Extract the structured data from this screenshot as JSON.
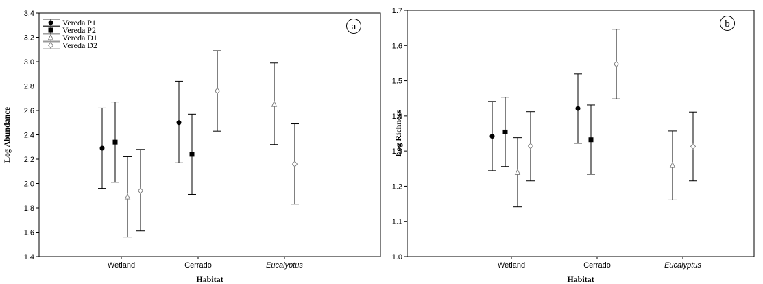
{
  "chart_data": [
    {
      "panel_label": "a",
      "type": "scatter",
      "title": "",
      "xlabel": "Habitat",
      "ylabel": "Log Abundance",
      "ylim": [
        1.4,
        3.4
      ],
      "yticks": [
        1.4,
        1.6,
        1.8,
        2.0,
        2.2,
        2.4,
        2.6,
        2.8,
        3.0,
        3.2,
        3.4
      ],
      "ytick_labels": [
        "1.4",
        "1.6",
        "1.8",
        "2.0",
        "2.2",
        "2.4",
        "2.6",
        "2.8",
        "3.0",
        "3.2",
        "3.4"
      ],
      "categories": [
        "Wetland",
        "Cerrado",
        "Eucalyptus"
      ],
      "categories_italic": [
        false,
        false,
        true
      ],
      "legend": {
        "position": "top-left",
        "entries": [
          "Vereda P1",
          "Vereda P2",
          "Vereda D1",
          "Vereda D2"
        ]
      },
      "series": [
        {
          "name": "Vereda P1",
          "marker": "circle-filled",
          "points": [
            {
              "category": "Wetland",
              "mean": 2.29,
              "low": 1.96,
              "high": 2.62
            },
            {
              "category": "Cerrado",
              "mean": 2.5,
              "low": 2.17,
              "high": 2.84
            }
          ]
        },
        {
          "name": "Vereda P2",
          "marker": "square-filled",
          "points": [
            {
              "category": "Wetland",
              "mean": 2.34,
              "low": 2.01,
              "high": 2.67
            },
            {
              "category": "Cerrado",
              "mean": 2.24,
              "low": 1.91,
              "high": 2.57
            }
          ]
        },
        {
          "name": "Vereda D1",
          "marker": "triangle-open",
          "points": [
            {
              "category": "Wetland",
              "mean": 1.89,
              "low": 1.56,
              "high": 2.22
            },
            {
              "category": "Eucalyptus",
              "mean": 2.65,
              "low": 2.32,
              "high": 2.99
            }
          ]
        },
        {
          "name": "Vereda D2",
          "marker": "diamond-open",
          "points": [
            {
              "category": "Wetland",
              "mean": 1.94,
              "low": 1.61,
              "high": 2.28
            },
            {
              "category": "Cerrado",
              "mean": 2.76,
              "low": 2.43,
              "high": 3.09
            },
            {
              "category": "Eucalyptus",
              "mean": 2.16,
              "low": 1.83,
              "high": 2.49
            }
          ]
        }
      ]
    },
    {
      "panel_label": "b",
      "type": "scatter",
      "title": "",
      "xlabel": "Habitat",
      "ylabel": "Log Richness",
      "ylim": [
        1.0,
        1.7
      ],
      "yticks": [
        1.0,
        1.1,
        1.2,
        1.3,
        1.4,
        1.5,
        1.6,
        1.7
      ],
      "ytick_labels": [
        "1.0",
        "1.1",
        "1.2",
        "1.3",
        "1.4",
        "1.5",
        "1.6",
        "1.7"
      ],
      "categories": [
        "Wetland",
        "Cerrado",
        "Eucalyptus"
      ],
      "categories_italic": [
        false,
        false,
        true
      ],
      "series": [
        {
          "name": "Vereda P1",
          "marker": "circle-filled",
          "points": [
            {
              "category": "Wetland",
              "mean": 1.342,
              "low": 1.244,
              "high": 1.441
            },
            {
              "category": "Cerrado",
              "mean": 1.421,
              "low": 1.322,
              "high": 1.519
            }
          ]
        },
        {
          "name": "Vereda P2",
          "marker": "square-filled",
          "points": [
            {
              "category": "Wetland",
              "mean": 1.354,
              "low": 1.256,
              "high": 1.453
            },
            {
              "category": "Cerrado",
              "mean": 1.332,
              "low": 1.234,
              "high": 1.431
            }
          ]
        },
        {
          "name": "Vereda D1",
          "marker": "triangle-open",
          "points": [
            {
              "category": "Wetland",
              "mean": 1.239,
              "low": 1.141,
              "high": 1.338
            },
            {
              "category": "Eucalyptus",
              "mean": 1.259,
              "low": 1.161,
              "high": 1.357
            }
          ]
        },
        {
          "name": "Vereda D2",
          "marker": "diamond-open",
          "points": [
            {
              "category": "Wetland",
              "mean": 1.314,
              "low": 1.215,
              "high": 1.412
            },
            {
              "category": "Cerrado",
              "mean": 1.547,
              "low": 1.448,
              "high": 1.646
            },
            {
              "category": "Eucalyptus",
              "mean": 1.313,
              "low": 1.215,
              "high": 1.411
            }
          ]
        }
      ]
    }
  ]
}
